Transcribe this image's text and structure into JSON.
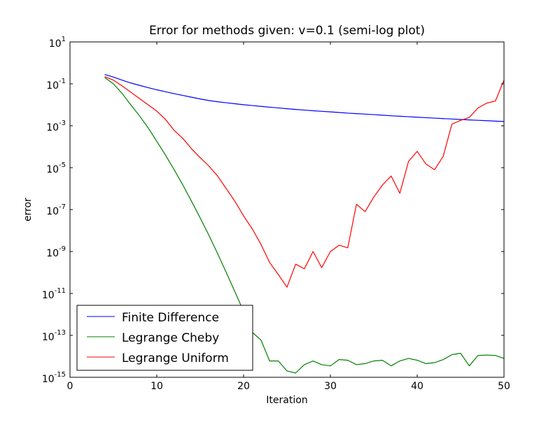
{
  "chart_data": {
    "type": "line",
    "title": "Error for methods given: v=0.1 (semi-log plot)",
    "xlabel": "Iteration",
    "ylabel": "error",
    "xlim": [
      0,
      50
    ],
    "ylim": [
      1e-15,
      10
    ],
    "yscale": "log",
    "grid": false,
    "legend_position": "lower-left",
    "x_ticks": [
      {
        "value": 0,
        "label": "0"
      },
      {
        "value": 10,
        "label": "10"
      },
      {
        "value": 20,
        "label": "20"
      },
      {
        "value": 30,
        "label": "30"
      },
      {
        "value": 40,
        "label": "40"
      },
      {
        "value": 50,
        "label": "50"
      }
    ],
    "y_ticks": [
      {
        "exp": 1,
        "base": "10",
        "sup": "1"
      },
      {
        "exp": -1,
        "base": "10",
        "sup": "-1"
      },
      {
        "exp": -3,
        "base": "10",
        "sup": "-3"
      },
      {
        "exp": -5,
        "base": "10",
        "sup": "-5"
      },
      {
        "exp": -7,
        "base": "10",
        "sup": "-7"
      },
      {
        "exp": -9,
        "base": "10",
        "sup": "-9"
      },
      {
        "exp": -11,
        "base": "10",
        "sup": "-11"
      },
      {
        "exp": -13,
        "base": "10",
        "sup": "-13"
      },
      {
        "exp": -15,
        "base": "10",
        "sup": "-15"
      }
    ],
    "x": [
      4,
      5,
      6,
      7,
      8,
      9,
      10,
      11,
      12,
      13,
      14,
      15,
      16,
      17,
      18,
      19,
      20,
      21,
      22,
      23,
      24,
      25,
      26,
      27,
      28,
      29,
      30,
      31,
      32,
      33,
      34,
      35,
      36,
      37,
      38,
      39,
      40,
      41,
      42,
      43,
      44,
      45,
      46,
      47,
      48,
      49,
      50
    ],
    "series": [
      {
        "name": "Finite Difference",
        "color": "#0000ff",
        "values": [
          0.28,
          0.21,
          0.15,
          0.11,
          0.085,
          0.066,
          0.052,
          0.042,
          0.034,
          0.028,
          0.023,
          0.019,
          0.016,
          0.014,
          0.0125,
          0.0112,
          0.0101,
          0.0092,
          0.0084,
          0.0077,
          0.0071,
          0.0065,
          0.006,
          0.0056,
          0.0052,
          0.0049,
          0.0046,
          0.0043,
          0.004,
          0.0038,
          0.0036,
          0.0034,
          0.0032,
          0.003,
          0.00285,
          0.0027,
          0.00256,
          0.00243,
          0.00232,
          0.0022,
          0.0021,
          0.002,
          0.0019,
          0.00182,
          0.00174,
          0.00166,
          0.0016
        ]
      },
      {
        "name": "Legrange Cheby",
        "color": "#008000",
        "values": [
          0.2,
          0.1,
          0.035,
          0.01,
          0.003,
          0.0008,
          0.00018,
          4e-05,
          8e-06,
          1.5e-06,
          2.5e-07,
          4e-08,
          6e-09,
          8e-10,
          1e-10,
          1.2e-11,
          1.4e-12,
          1.4e-13,
          6e-14,
          6e-15,
          6e-15,
          2e-15,
          1.6e-15,
          4e-15,
          6e-15,
          4e-15,
          3.5e-15,
          7e-15,
          6.5e-15,
          4e-15,
          4.5e-15,
          6e-15,
          6.5e-15,
          3.5e-15,
          6e-15,
          8e-15,
          6.5e-15,
          4.5e-15,
          5e-15,
          7e-15,
          1.2e-14,
          1.4e-14,
          3.5e-15,
          1.1e-14,
          1.15e-14,
          1.1e-14,
          8e-15
        ]
      },
      {
        "name": "Legrange Uniform",
        "color": "#ff0000",
        "values": [
          0.22,
          0.15,
          0.08,
          0.04,
          0.02,
          0.01,
          0.005,
          0.002,
          0.0006,
          0.00025,
          8e-05,
          3e-05,
          1.2e-05,
          4e-06,
          1e-06,
          2.5e-07,
          5e-08,
          1.2e-08,
          2.2e-09,
          3e-10,
          8e-11,
          2e-11,
          2.5e-10,
          1.5e-10,
          1e-09,
          1.7e-10,
          1e-09,
          2e-09,
          1.5e-09,
          1.8e-07,
          8e-08,
          4e-07,
          1.5e-06,
          4e-06,
          6e-07,
          2e-05,
          6e-05,
          1.5e-05,
          8e-06,
          3.5e-05,
          0.0012,
          0.0018,
          0.0025,
          0.007,
          0.012,
          0.015,
          0.15
        ]
      }
    ]
  }
}
